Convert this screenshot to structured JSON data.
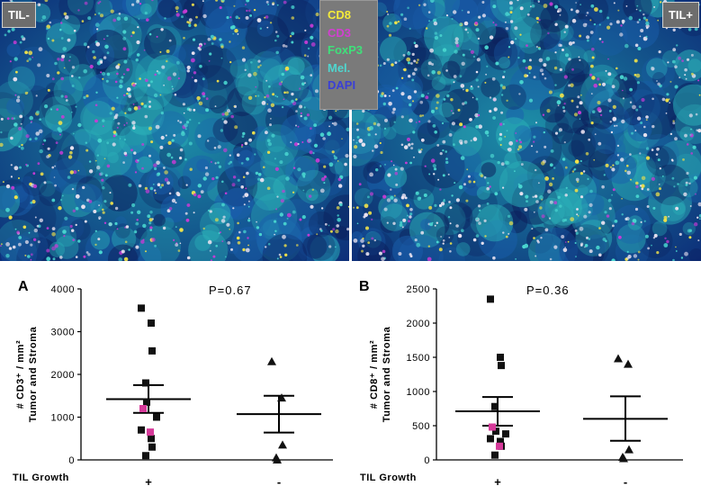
{
  "figure": {
    "left_tag": "TIL-",
    "right_tag": "TIL+",
    "stains": [
      {
        "label": "CD8",
        "color": "#f4ea3a"
      },
      {
        "label": "CD3",
        "color": "#d23fd0"
      },
      {
        "label": "FoxP3",
        "color": "#3fe07a"
      },
      {
        "label": "Mel.",
        "color": "#4fd6cf"
      },
      {
        "label": "DAPI",
        "color": "#3a3fd6"
      }
    ]
  },
  "chart_data": [
    {
      "type": "scatter",
      "panel": "A",
      "annotation": "P=0.67",
      "ylabel_line1": "# CD3⁺ / mm²",
      "ylabel_line2": "Tumor and Stroma",
      "xlabel": "TIL Growth",
      "categories": [
        "+",
        "-"
      ],
      "ylim": [
        0,
        4000
      ],
      "yticks": [
        0,
        1000,
        2000,
        3000,
        4000
      ],
      "series": [
        {
          "marker": "square",
          "group": "+",
          "values": [
            3550,
            3200,
            2550,
            1800,
            1350,
            1000,
            700,
            500,
            300,
            100
          ],
          "highlighted": [
            1200,
            650
          ]
        },
        {
          "marker": "triangle",
          "group": "-",
          "values": [
            2300,
            1450,
            350,
            50,
            0
          ]
        }
      ],
      "summary": [
        {
          "group": "+",
          "mean": 1420,
          "lower": 1100,
          "upper": 1750
        },
        {
          "group": "-",
          "mean": 1070,
          "lower": 640,
          "upper": 1500
        }
      ]
    },
    {
      "type": "scatter",
      "panel": "B",
      "annotation": "P=0.36",
      "ylabel_line1": "# CD8⁺ / mm²",
      "ylabel_line2": "Tumor and Stroma",
      "xlabel": "TIL Growth",
      "categories": [
        "+",
        "-"
      ],
      "ylim": [
        0,
        2500
      ],
      "yticks": [
        0,
        500,
        1000,
        1500,
        2000,
        2500
      ],
      "series": [
        {
          "marker": "square",
          "group": "+",
          "values": [
            2350,
            1500,
            1380,
            780,
            420,
            380,
            310,
            270,
            200,
            70
          ],
          "highlighted": [
            480,
            200
          ]
        },
        {
          "marker": "triangle",
          "group": "-",
          "values": [
            1480,
            1400,
            150,
            40,
            20
          ]
        }
      ],
      "summary": [
        {
          "group": "+",
          "mean": 710,
          "lower": 500,
          "upper": 920
        },
        {
          "group": "-",
          "mean": 600,
          "lower": 280,
          "upper": 930
        }
      ]
    }
  ]
}
